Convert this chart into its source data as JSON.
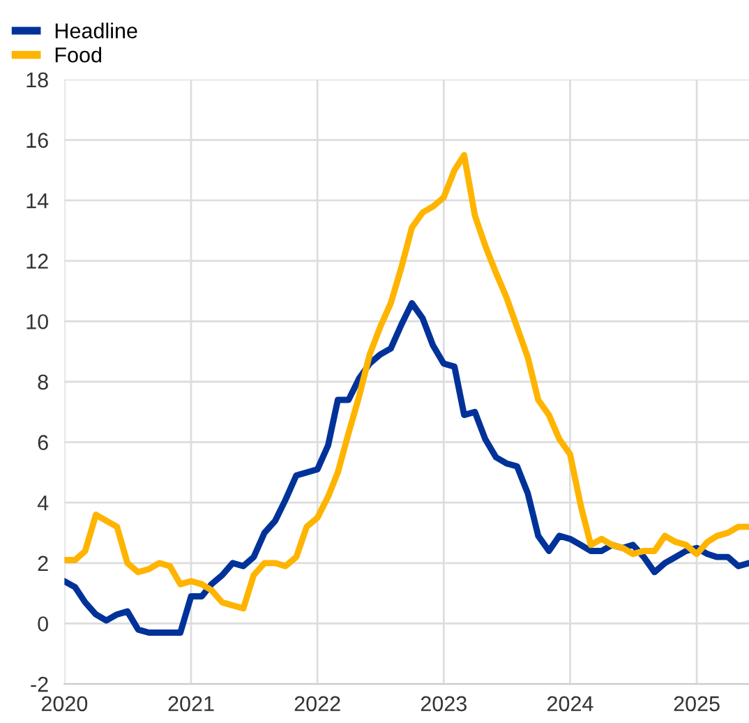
{
  "chart_data": {
    "type": "line",
    "x": [
      "2020-01",
      "2020-02",
      "2020-03",
      "2020-04",
      "2020-05",
      "2020-06",
      "2020-07",
      "2020-08",
      "2020-09",
      "2020-10",
      "2020-11",
      "2020-12",
      "2021-01",
      "2021-02",
      "2021-03",
      "2021-04",
      "2021-05",
      "2021-06",
      "2021-07",
      "2021-08",
      "2021-09",
      "2021-10",
      "2021-11",
      "2021-12",
      "2022-01",
      "2022-02",
      "2022-03",
      "2022-04",
      "2022-05",
      "2022-06",
      "2022-07",
      "2022-08",
      "2022-09",
      "2022-10",
      "2022-11",
      "2022-12",
      "2023-01",
      "2023-02",
      "2023-03",
      "2023-04",
      "2023-05",
      "2023-06",
      "2023-07",
      "2023-08",
      "2023-09",
      "2023-10",
      "2023-11",
      "2023-12",
      "2024-01",
      "2024-02",
      "2024-03",
      "2024-04",
      "2024-05",
      "2024-06",
      "2024-07",
      "2024-08",
      "2024-09",
      "2024-10",
      "2024-11",
      "2024-12",
      "2025-01",
      "2025-02",
      "2025-03",
      "2025-04",
      "2025-05",
      "2025-06"
    ],
    "series": [
      {
        "name": "Headline",
        "color": "#003299",
        "values": [
          1.4,
          1.2,
          0.7,
          0.3,
          0.1,
          0.3,
          0.4,
          -0.2,
          -0.3,
          -0.3,
          -0.3,
          -0.3,
          0.9,
          0.9,
          1.3,
          1.6,
          2.0,
          1.9,
          2.2,
          3.0,
          3.4,
          4.1,
          4.9,
          5.0,
          5.1,
          5.9,
          7.4,
          7.4,
          8.1,
          8.6,
          8.9,
          9.1,
          9.9,
          10.6,
          10.1,
          9.2,
          8.6,
          8.5,
          6.9,
          7.0,
          6.1,
          5.5,
          5.3,
          5.2,
          4.3,
          2.9,
          2.4,
          2.9,
          2.8,
          2.6,
          2.4,
          2.4,
          2.6,
          2.5,
          2.6,
          2.2,
          1.7,
          2.0,
          2.2,
          2.4,
          2.5,
          2.3,
          2.2,
          2.2,
          1.9,
          2.0
        ]
      },
      {
        "name": "Food",
        "color": "#ffb400",
        "values": [
          2.1,
          2.1,
          2.4,
          3.6,
          3.4,
          3.2,
          2.0,
          1.7,
          1.8,
          2.0,
          1.9,
          1.3,
          1.4,
          1.3,
          1.1,
          0.7,
          0.6,
          0.5,
          1.6,
          2.0,
          2.0,
          1.9,
          2.2,
          3.2,
          3.5,
          4.2,
          5.0,
          6.3,
          7.5,
          8.9,
          9.8,
          10.6,
          11.8,
          13.1,
          13.6,
          13.8,
          14.1,
          15.0,
          15.5,
          13.5,
          12.5,
          11.6,
          10.8,
          9.8,
          8.8,
          7.4,
          6.9,
          6.1,
          5.6,
          3.9,
          2.6,
          2.8,
          2.6,
          2.5,
          2.3,
          2.4,
          2.4,
          2.9,
          2.7,
          2.6,
          2.3,
          2.7,
          2.9,
          3.0,
          3.2,
          3.2
        ]
      }
    ],
    "xlim": [
      "2020-01",
      "2025-06"
    ],
    "xticks": [
      {
        "value": "2020",
        "label": "2020"
      },
      {
        "value": "2021",
        "label": "2021"
      },
      {
        "value": "2022",
        "label": "2022"
      },
      {
        "value": "2023",
        "label": "2023"
      },
      {
        "value": "2024",
        "label": "2024"
      },
      {
        "value": "2025",
        "label": "2025"
      }
    ],
    "ylim": [
      -2,
      18
    ],
    "yticks": [
      -2,
      0,
      2,
      4,
      6,
      8,
      10,
      12,
      14,
      16,
      18
    ],
    "grid": true,
    "legend": "top left",
    "marker": "none",
    "line_style": "solid"
  }
}
